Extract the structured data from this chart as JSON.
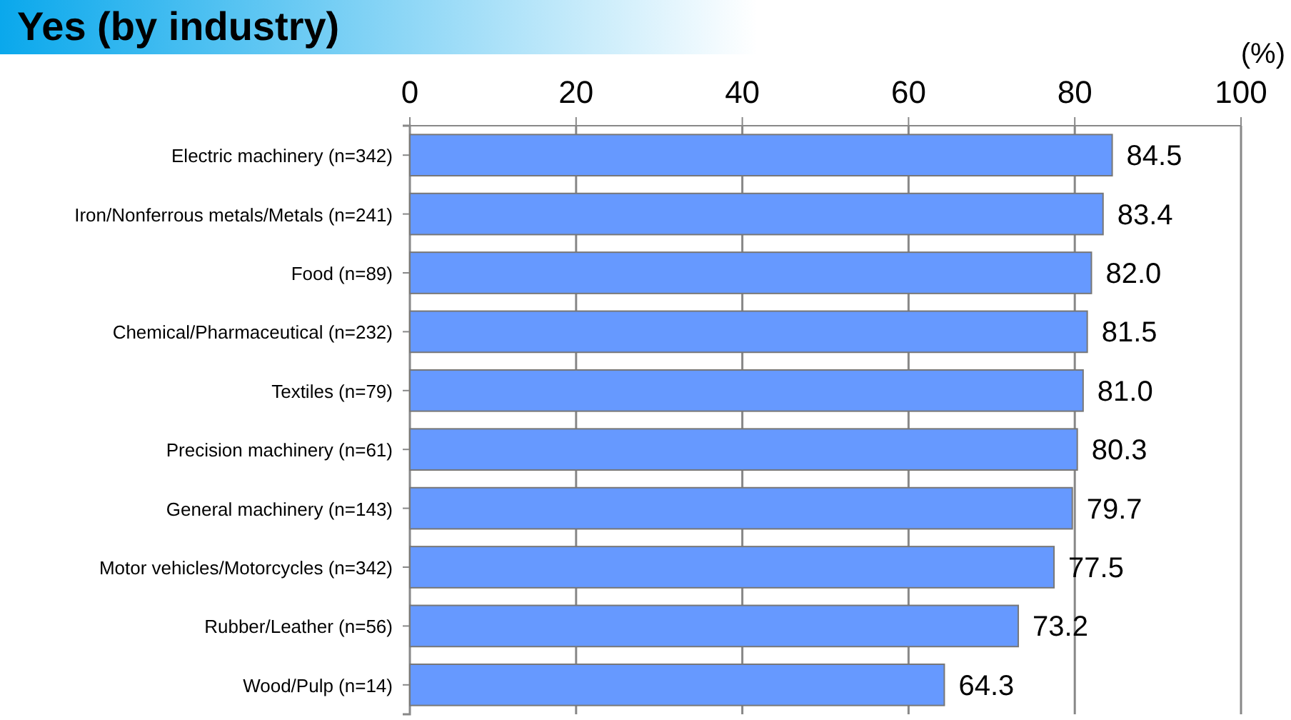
{
  "chart_data": {
    "type": "bar",
    "orientation": "horizontal",
    "title": "Yes (by industry)",
    "xlabel": "(%)",
    "categories": [
      "Electric machinery (n=342)",
      "Iron/Nonferrous metals/Metals (n=241)",
      "Food (n=89)",
      "Chemical/Pharmaceutical (n=232)",
      "Textiles (n=79)",
      "Precision machinery (n=61)",
      "General machinery (n=143)",
      "Motor vehicles/Motorcycles (n=342)",
      "Rubber/Leather (n=56)",
      "Wood/Pulp (n=14)"
    ],
    "values": [
      84.5,
      83.4,
      82.0,
      81.5,
      81.0,
      80.3,
      79.7,
      77.5,
      73.2,
      64.3
    ],
    "value_labels": [
      "84.5",
      "83.4",
      "82.0",
      "81.5",
      "81.0",
      "80.3",
      "79.7",
      "77.5",
      "73.2",
      "64.3"
    ],
    "color": "#6699ff",
    "xlim": [
      0,
      100
    ],
    "xticks": [
      0,
      20,
      40,
      60,
      80,
      100
    ],
    "grid": "x"
  }
}
